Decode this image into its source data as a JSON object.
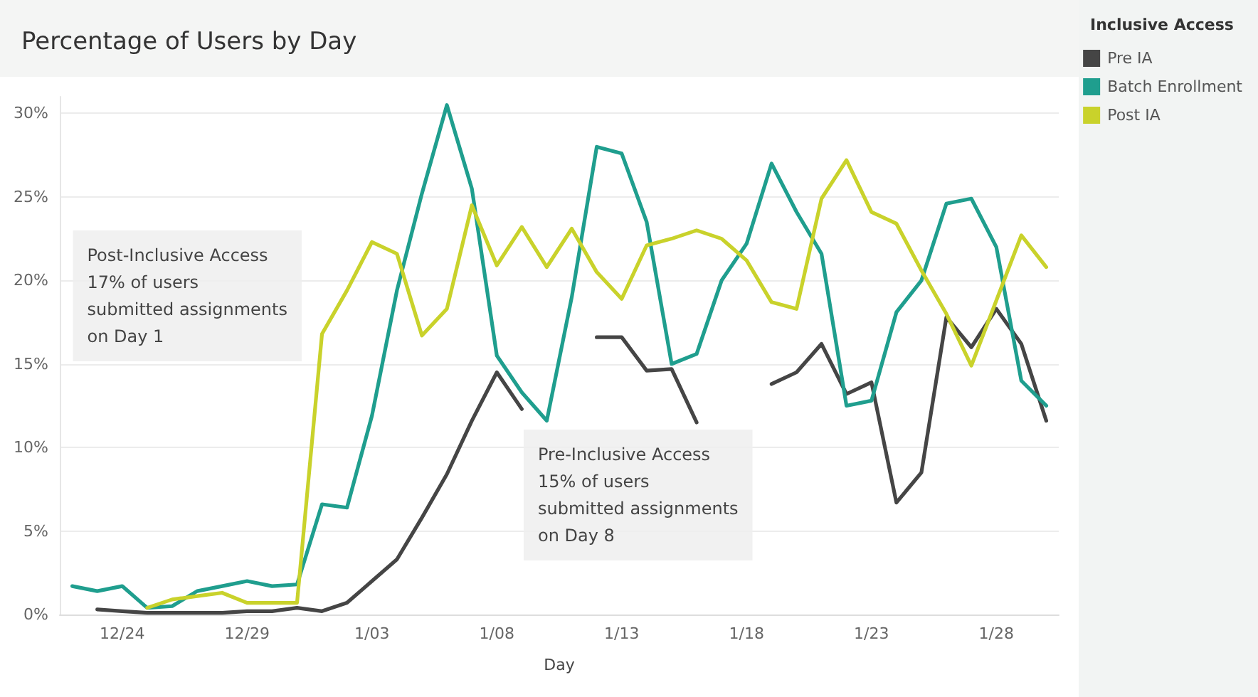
{
  "chart_data": {
    "type": "line",
    "title": "Percentage of Users by Day",
    "xlabel": "Day",
    "legend_title": "Inclusive Access",
    "categories": [
      null,
      null,
      "12/24",
      null,
      null,
      null,
      null,
      "12/29",
      null,
      null,
      null,
      null,
      "1/03",
      null,
      null,
      null,
      null,
      "1/08",
      null,
      null,
      null,
      null,
      "1/13",
      null,
      null,
      null,
      null,
      "1/18",
      null,
      null,
      null,
      null,
      "1/23",
      null,
      null,
      null,
      null,
      "1/28",
      null,
      null
    ],
    "series": [
      {
        "name": "Pre IA",
        "color": "#454545",
        "values": [
          null,
          0.3,
          0.2,
          0.1,
          0.1,
          0.1,
          0.1,
          0.2,
          0.2,
          0.4,
          0.2,
          0.7,
          2.0,
          3.3,
          5.8,
          8.4,
          11.6,
          14.5,
          12.3,
          null,
          null,
          16.6,
          16.6,
          14.6,
          14.7,
          11.5,
          null,
          null,
          13.8,
          14.5,
          16.2,
          13.2,
          13.9,
          6.7,
          8.5,
          17.8,
          16.0,
          18.3,
          16.2,
          11.6
        ]
      },
      {
        "name": "Batch Enrollment",
        "color": "#1f9e8e",
        "values": [
          1.7,
          1.4,
          1.7,
          0.4,
          0.5,
          1.4,
          1.7,
          2.0,
          1.7,
          1.8,
          6.6,
          6.4,
          11.9,
          19.4,
          25.2,
          30.5,
          25.5,
          15.5,
          13.3,
          11.6,
          19.0,
          28.0,
          27.6,
          23.5,
          15.0,
          15.6,
          20.0,
          22.2,
          27.0,
          24.1,
          21.6,
          12.5,
          12.8,
          18.1,
          20.0,
          24.6,
          24.9,
          22.0,
          14.0,
          12.5
        ]
      },
      {
        "name": "Post IA",
        "color": "#c9d22b",
        "values": [
          null,
          null,
          null,
          0.4,
          0.9,
          1.1,
          1.3,
          0.7,
          0.7,
          0.7,
          16.8,
          19.4,
          22.3,
          21.6,
          16.7,
          18.3,
          24.5,
          20.9,
          23.2,
          20.8,
          23.1,
          20.5,
          18.9,
          22.1,
          22.5,
          23.0,
          22.5,
          21.2,
          18.7,
          18.3,
          24.9,
          27.2,
          24.1,
          23.4,
          20.6,
          18.0,
          14.9,
          18.8,
          22.7,
          20.8
        ]
      }
    ],
    "ylim": [
      0,
      31
    ],
    "yticks": [
      {
        "value": 0,
        "label": "0%"
      },
      {
        "value": 5,
        "label": "5%"
      },
      {
        "value": 10,
        "label": "10%"
      },
      {
        "value": 15,
        "label": "15%"
      },
      {
        "value": 20,
        "label": "20%"
      },
      {
        "value": 25,
        "label": "25%"
      },
      {
        "value": 30,
        "label": "30%"
      }
    ],
    "grid": "y",
    "legend": "top right",
    "marker": "none",
    "line_style": "solid",
    "annotations": [
      "Post-Inclusive Access\n17% of users\nsubmitted assignments\non Day 1",
      "Pre-Inclusive Access\n15% of users\nsubmitted assignments\non Day 8"
    ]
  }
}
